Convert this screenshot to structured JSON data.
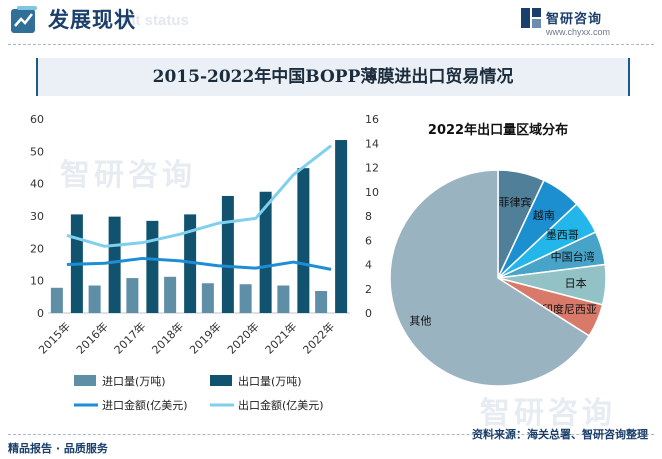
{
  "header": {
    "title": "发展现状",
    "subtitle": "ent status"
  },
  "brand": {
    "name": "智研咨询",
    "url": "www.chyxx.com"
  },
  "watermark": {
    "text": "智研咨询"
  },
  "main_title": "2015-2022年中国BOPP薄膜进出口贸易情况",
  "footer": {
    "left": "精品报告 · 品质服务",
    "right": "资料来源：海关总署、智研咨询整理"
  },
  "colors": {
    "import_volume": "#5e8fa7",
    "export_volume": "#11536e",
    "import_value": "#1d8ed6",
    "export_value": "#7fd0ef",
    "accent": "#1b3f6b"
  },
  "chart_data": [
    {
      "type": "bar",
      "title": "",
      "categories": [
        "2015年",
        "2016年",
        "2017年",
        "2018年",
        "2019年",
        "2020年",
        "2021年",
        "2022年"
      ],
      "ylim": [
        0,
        60
      ],
      "y2lim": [
        0,
        16
      ],
      "yticks": [
        0,
        10,
        20,
        30,
        40,
        50,
        60
      ],
      "y2ticks": [
        0,
        2,
        4,
        6,
        8,
        10,
        12,
        14,
        16
      ],
      "grid": false,
      "legend": "bottom",
      "series": [
        {
          "name": "进口量(万吨)",
          "type": "bar",
          "axis": "left",
          "values": [
            7.8,
            8.5,
            10.8,
            11.2,
            9.2,
            8.9,
            8.5,
            6.8
          ]
        },
        {
          "name": "出口量(万吨)",
          "type": "bar",
          "axis": "left",
          "values": [
            30.5,
            29.8,
            28.5,
            30.5,
            36.2,
            37.5,
            44.8,
            53.5
          ]
        },
        {
          "name": "进口金额(亿美元)",
          "type": "line",
          "axis": "right",
          "values": [
            4.0,
            4.1,
            4.5,
            4.3,
            3.9,
            3.7,
            4.2,
            3.6
          ]
        },
        {
          "name": "出口金额(亿美元)",
          "type": "line",
          "axis": "right",
          "values": [
            6.4,
            5.5,
            5.8,
            6.5,
            7.4,
            7.8,
            11.4,
            13.8
          ]
        }
      ]
    },
    {
      "type": "pie",
      "title": "2022年出口量区域分布",
      "slices": [
        {
          "label": "菲律宾",
          "value": 7,
          "color": "#4f7f99"
        },
        {
          "label": "越南",
          "value": 6,
          "color": "#1c8fd0"
        },
        {
          "label": "墨西哥",
          "value": 5,
          "color": "#22b6ea"
        },
        {
          "label": "中国台湾",
          "value": 5,
          "color": "#48a3c9"
        },
        {
          "label": "日本",
          "value": 6,
          "color": "#93c2c6"
        },
        {
          "label": "印度尼西亚",
          "value": 5,
          "color": "#d9796a"
        },
        {
          "label": "其他",
          "value": 66,
          "color": "#9ab3c1"
        }
      ]
    }
  ]
}
